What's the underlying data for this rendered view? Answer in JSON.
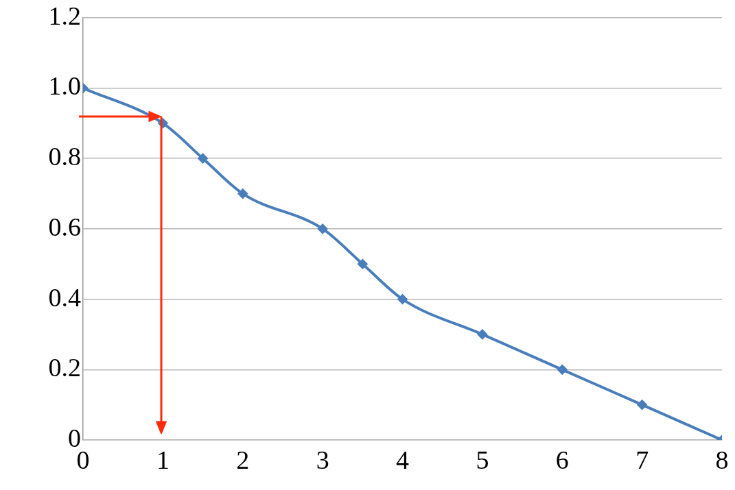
{
  "chart_data": {
    "type": "line",
    "x": [
      0,
      1,
      1.5,
      2,
      3,
      3.5,
      4,
      5,
      6,
      7,
      8
    ],
    "series": [
      {
        "color": "#4a7ebb",
        "values": [
          1.0,
          0.9,
          0.8,
          0.7,
          0.6,
          0.5,
          0.4,
          0.3,
          0.2,
          0.1,
          0
        ]
      }
    ],
    "xlim": [
      0,
      8
    ],
    "xticks": [
      0,
      1,
      2,
      3,
      4,
      5,
      6,
      7,
      8
    ],
    "ylim": [
      0,
      1.2
    ],
    "yticks": [
      0,
      0.2,
      0.4,
      0.6,
      0.8,
      {
        "value": 1,
        "label": "1.0"
      },
      1.2
    ],
    "grid": "y",
    "legend": false,
    "marker": "diamond",
    "line_style": "solid"
  }
}
